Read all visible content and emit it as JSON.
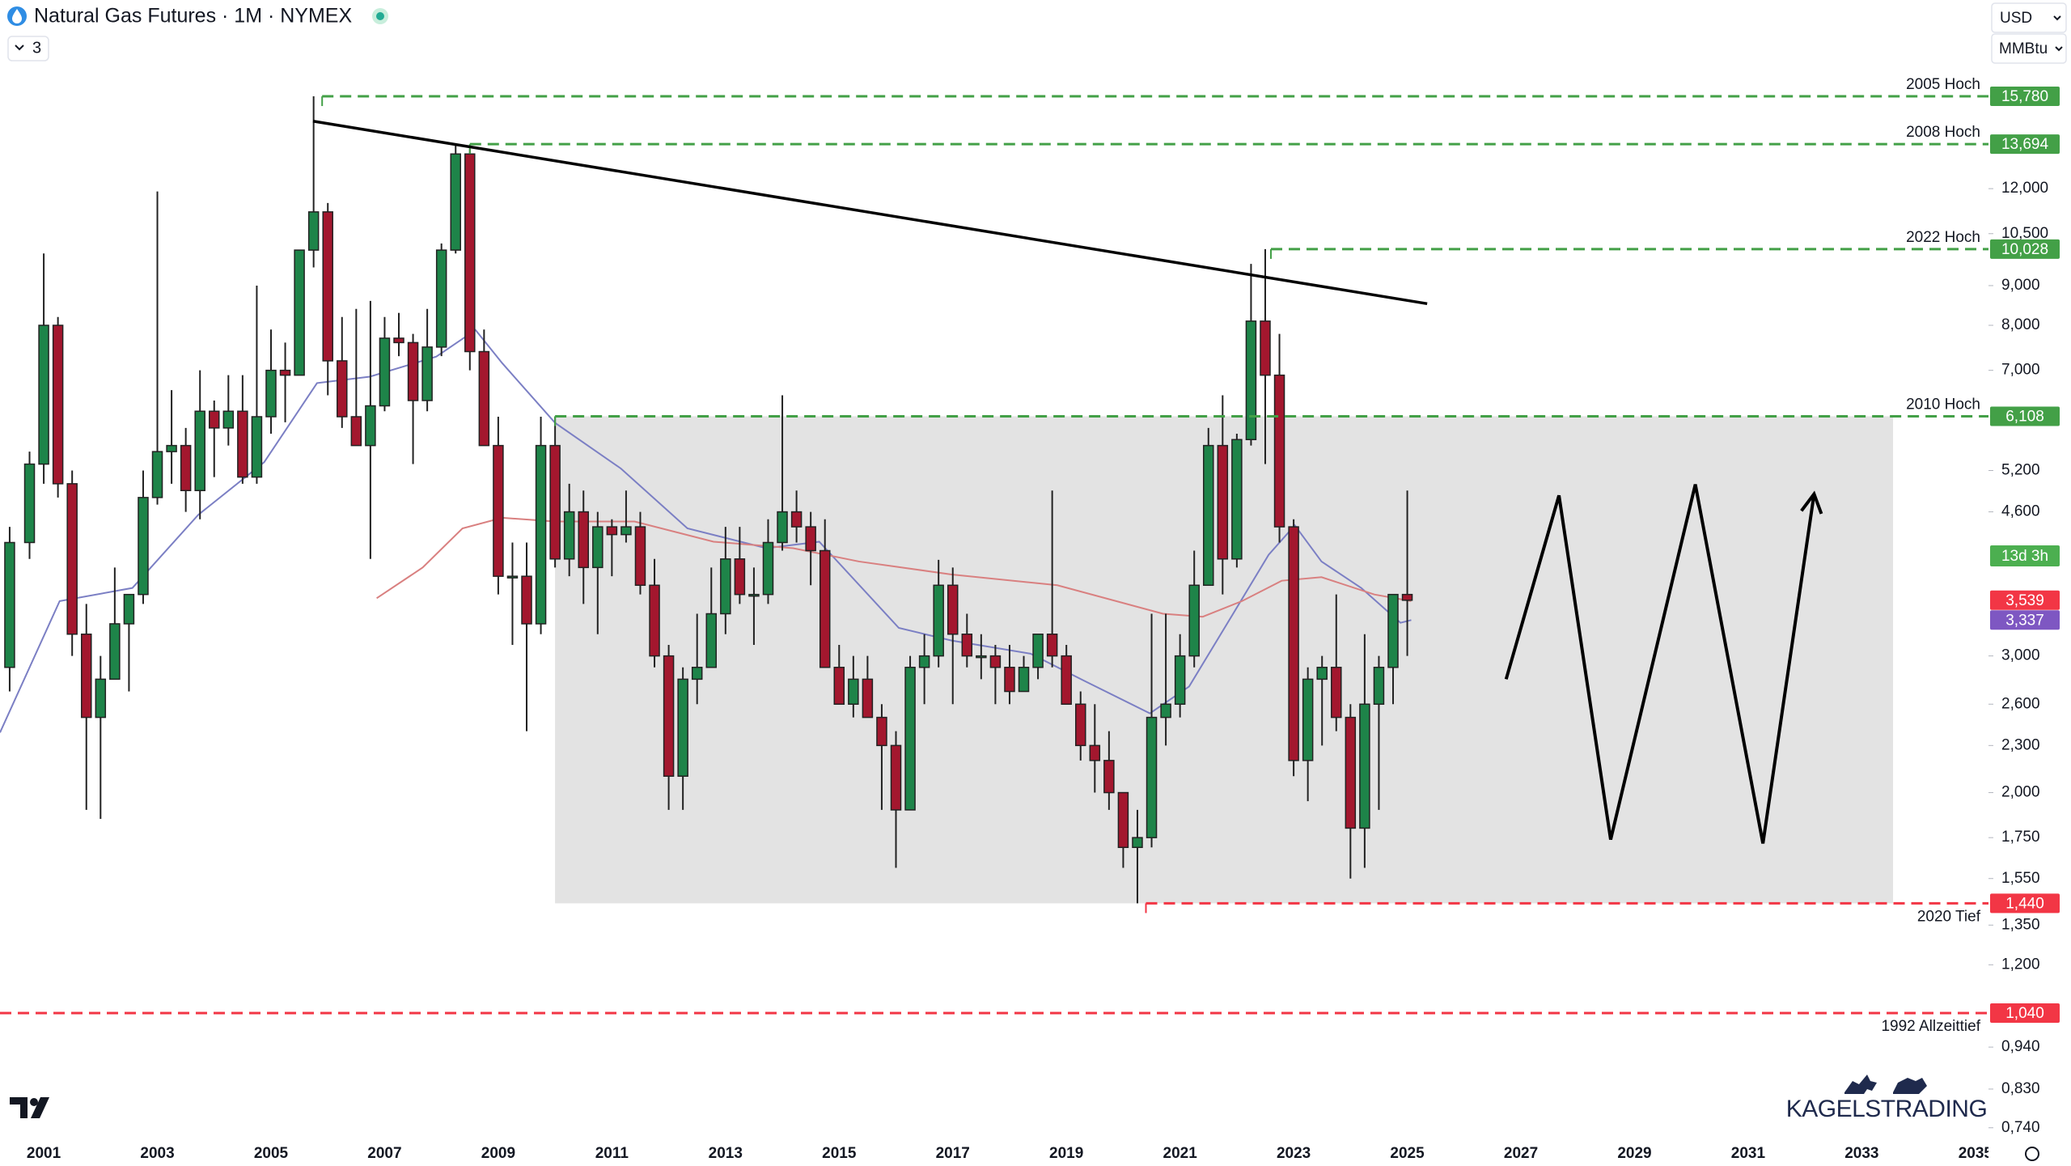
{
  "chart_data": {
    "type": "candlestick",
    "title": "Natural Gas Futures · 1M · NYMEX",
    "indicator_count": "3",
    "currency": "USD",
    "unit": "MMBtu",
    "watermark": "KAGELSTRADING",
    "countdown": "13d 3h",
    "log_scale": true,
    "xlim": [
      2000.23,
      2035.23
    ],
    "xticks": [
      2001,
      2003,
      2005,
      2007,
      2009,
      2011,
      2013,
      2015,
      2017,
      2019,
      2021,
      2023,
      2025,
      2027,
      2029,
      2031,
      2033,
      2035
    ],
    "ylim": [
      0.722,
      21.0
    ],
    "yticks": [
      {
        "value": 12,
        "label": "12,000"
      },
      {
        "value": 10.5,
        "label": "10,500"
      },
      {
        "value": 9,
        "label": "9,000"
      },
      {
        "value": 8,
        "label": "8,000"
      },
      {
        "value": 7,
        "label": "7,000"
      },
      {
        "value": 5.2,
        "label": "5,200"
      },
      {
        "value": 4.6,
        "label": "4,600"
      },
      {
        "value": 3,
        "label": "3,000"
      },
      {
        "value": 2.6,
        "label": "2,600"
      },
      {
        "value": 2.3,
        "label": "2,300"
      },
      {
        "value": 2,
        "label": "2,000"
      },
      {
        "value": 1.75,
        "label": "1,750"
      },
      {
        "value": 1.55,
        "label": "1,550"
      },
      {
        "value": 1.35,
        "label": "1,350"
      },
      {
        "value": 1.2,
        "label": "1,200"
      },
      {
        "value": 0.94,
        "label": "0,940"
      },
      {
        "value": 0.83,
        "label": "0,830"
      },
      {
        "value": 0.74,
        "label": "0,740"
      }
    ],
    "up_color": "#1e8449",
    "down_color": "#a3172e",
    "candles": [
      {
        "x": 2000.4,
        "open": 2.9,
        "high": 4.4,
        "low": 2.7,
        "close": 4.2
      },
      {
        "x": 2000.75,
        "open": 4.2,
        "high": 5.5,
        "low": 4.0,
        "close": 5.3
      },
      {
        "x": 2001.0,
        "open": 5.3,
        "high": 9.9,
        "low": 5.0,
        "close": 8.0
      },
      {
        "x": 2001.25,
        "open": 8.0,
        "high": 8.2,
        "low": 4.8,
        "close": 5.0
      },
      {
        "x": 2001.5,
        "open": 5.0,
        "high": 5.2,
        "low": 3.0,
        "close": 3.2
      },
      {
        "x": 2001.75,
        "open": 3.2,
        "high": 3.5,
        "low": 1.9,
        "close": 2.5
      },
      {
        "x": 2002.0,
        "open": 2.5,
        "high": 3.0,
        "low": 1.85,
        "close": 2.8
      },
      {
        "x": 2002.25,
        "open": 2.8,
        "high": 3.9,
        "low": 2.8,
        "close": 3.3
      },
      {
        "x": 2002.5,
        "open": 3.3,
        "high": 3.6,
        "low": 2.7,
        "close": 3.6
      },
      {
        "x": 2002.75,
        "open": 3.6,
        "high": 5.2,
        "low": 3.5,
        "close": 4.8
      },
      {
        "x": 2003.0,
        "open": 4.8,
        "high": 11.9,
        "low": 4.7,
        "close": 5.5
      },
      {
        "x": 2003.25,
        "open": 5.5,
        "high": 6.6,
        "low": 5.0,
        "close": 5.6
      },
      {
        "x": 2003.5,
        "open": 5.6,
        "high": 5.9,
        "low": 4.6,
        "close": 4.9
      },
      {
        "x": 2003.75,
        "open": 4.9,
        "high": 7.0,
        "low": 4.5,
        "close": 6.2
      },
      {
        "x": 2004.0,
        "open": 6.2,
        "high": 6.4,
        "low": 5.1,
        "close": 5.9
      },
      {
        "x": 2004.25,
        "open": 5.9,
        "high": 6.9,
        "low": 5.6,
        "close": 6.2
      },
      {
        "x": 2004.5,
        "open": 6.2,
        "high": 6.9,
        "low": 5.0,
        "close": 5.1
      },
      {
        "x": 2004.75,
        "open": 5.1,
        "high": 9.0,
        "low": 5.0,
        "close": 6.1
      },
      {
        "x": 2005.0,
        "open": 6.1,
        "high": 7.9,
        "low": 5.8,
        "close": 7.0
      },
      {
        "x": 2005.25,
        "open": 7.0,
        "high": 7.6,
        "low": 6.0,
        "close": 6.9
      },
      {
        "x": 2005.5,
        "open": 6.9,
        "high": 10.0,
        "low": 6.9,
        "close": 10.0
      },
      {
        "x": 2005.75,
        "open": 10.0,
        "high": 15.78,
        "low": 9.5,
        "close": 11.2
      },
      {
        "x": 2006.0,
        "open": 11.2,
        "high": 11.5,
        "low": 6.5,
        "close": 7.2
      },
      {
        "x": 2006.25,
        "open": 7.2,
        "high": 8.2,
        "low": 5.9,
        "close": 6.1
      },
      {
        "x": 2006.5,
        "open": 6.1,
        "high": 8.4,
        "low": 5.6,
        "close": 5.6
      },
      {
        "x": 2006.75,
        "open": 5.6,
        "high": 8.6,
        "low": 4.0,
        "close": 6.3
      },
      {
        "x": 2007.0,
        "open": 6.3,
        "high": 8.2,
        "low": 6.2,
        "close": 7.7
      },
      {
        "x": 2007.25,
        "open": 7.7,
        "high": 8.3,
        "low": 7.3,
        "close": 7.6
      },
      {
        "x": 2007.5,
        "open": 7.6,
        "high": 7.8,
        "low": 5.3,
        "close": 6.4
      },
      {
        "x": 2007.75,
        "open": 6.4,
        "high": 8.4,
        "low": 6.2,
        "close": 7.5
      },
      {
        "x": 2008.0,
        "open": 7.5,
        "high": 10.2,
        "low": 7.3,
        "close": 10.0
      },
      {
        "x": 2008.25,
        "open": 10.0,
        "high": 13.694,
        "low": 9.9,
        "close": 13.3
      },
      {
        "x": 2008.5,
        "open": 13.3,
        "high": 13.5,
        "low": 7.0,
        "close": 7.4
      },
      {
        "x": 2008.75,
        "open": 7.4,
        "high": 7.9,
        "low": 5.6,
        "close": 5.6
      },
      {
        "x": 2009.0,
        "open": 5.6,
        "high": 6.1,
        "low": 3.6,
        "close": 3.8
      },
      {
        "x": 2009.25,
        "open": 3.8,
        "high": 4.2,
        "low": 3.1,
        "close": 3.8
      },
      {
        "x": 2009.5,
        "open": 3.8,
        "high": 4.2,
        "low": 2.4,
        "close": 3.3
      },
      {
        "x": 2009.75,
        "open": 3.3,
        "high": 6.1,
        "low": 3.2,
        "close": 5.6
      },
      {
        "x": 2010.0,
        "open": 5.6,
        "high": 6.108,
        "low": 3.9,
        "close": 4.0
      },
      {
        "x": 2010.25,
        "open": 4.0,
        "high": 5.0,
        "low": 3.8,
        "close": 4.6
      },
      {
        "x": 2010.5,
        "open": 4.6,
        "high": 4.9,
        "low": 3.5,
        "close": 3.9
      },
      {
        "x": 2010.75,
        "open": 3.9,
        "high": 4.6,
        "low": 3.2,
        "close": 4.4
      },
      {
        "x": 2011.0,
        "open": 4.4,
        "high": 4.5,
        "low": 3.8,
        "close": 4.3
      },
      {
        "x": 2011.25,
        "open": 4.3,
        "high": 4.9,
        "low": 4.2,
        "close": 4.4
      },
      {
        "x": 2011.5,
        "open": 4.4,
        "high": 4.6,
        "low": 3.6,
        "close": 3.7
      },
      {
        "x": 2011.75,
        "open": 3.7,
        "high": 4.0,
        "low": 2.9,
        "close": 3.0
      },
      {
        "x": 2012.0,
        "open": 3.0,
        "high": 3.1,
        "low": 1.9,
        "close": 2.1
      },
      {
        "x": 2012.25,
        "open": 2.1,
        "high": 2.9,
        "low": 1.9,
        "close": 2.8
      },
      {
        "x": 2012.5,
        "open": 2.8,
        "high": 3.4,
        "low": 2.6,
        "close": 2.9
      },
      {
        "x": 2012.75,
        "open": 2.9,
        "high": 3.9,
        "low": 2.9,
        "close": 3.4
      },
      {
        "x": 2013.0,
        "open": 3.4,
        "high": 4.4,
        "low": 3.2,
        "close": 4.0
      },
      {
        "x": 2013.25,
        "open": 4.0,
        "high": 4.4,
        "low": 3.5,
        "close": 3.6
      },
      {
        "x": 2013.5,
        "open": 3.6,
        "high": 3.9,
        "low": 3.1,
        "close": 3.6
      },
      {
        "x": 2013.75,
        "open": 3.6,
        "high": 4.5,
        "low": 3.5,
        "close": 4.2
      },
      {
        "x": 2014.0,
        "open": 4.2,
        "high": 6.5,
        "low": 4.1,
        "close": 4.6
      },
      {
        "x": 2014.25,
        "open": 4.6,
        "high": 4.9,
        "low": 4.2,
        "close": 4.4
      },
      {
        "x": 2014.5,
        "open": 4.4,
        "high": 4.6,
        "low": 3.7,
        "close": 4.1
      },
      {
        "x": 2014.75,
        "open": 4.1,
        "high": 4.5,
        "low": 2.9,
        "close": 2.9
      },
      {
        "x": 2015.0,
        "open": 2.9,
        "high": 3.1,
        "low": 2.6,
        "close": 2.6
      },
      {
        "x": 2015.25,
        "open": 2.6,
        "high": 3.0,
        "low": 2.5,
        "close": 2.8
      },
      {
        "x": 2015.5,
        "open": 2.8,
        "high": 3.0,
        "low": 2.5,
        "close": 2.5
      },
      {
        "x": 2015.75,
        "open": 2.5,
        "high": 2.6,
        "low": 1.9,
        "close": 2.3
      },
      {
        "x": 2016.0,
        "open": 2.3,
        "high": 2.4,
        "low": 1.6,
        "close": 1.9
      },
      {
        "x": 2016.25,
        "open": 1.9,
        "high": 3.0,
        "low": 1.9,
        "close": 2.9
      },
      {
        "x": 2016.5,
        "open": 2.9,
        "high": 3.2,
        "low": 2.6,
        "close": 3.0
      },
      {
        "x": 2016.75,
        "open": 3.0,
        "high": 3.99,
        "low": 2.9,
        "close": 3.7
      },
      {
        "x": 2017.0,
        "open": 3.7,
        "high": 3.9,
        "low": 2.6,
        "close": 3.2
      },
      {
        "x": 2017.25,
        "open": 3.2,
        "high": 3.4,
        "low": 2.9,
        "close": 3.0
      },
      {
        "x": 2017.5,
        "open": 3.0,
        "high": 3.2,
        "low": 2.8,
        "close": 3.0
      },
      {
        "x": 2017.75,
        "open": 3.0,
        "high": 3.1,
        "low": 2.6,
        "close": 2.9
      },
      {
        "x": 2018.0,
        "open": 2.9,
        "high": 3.1,
        "low": 2.6,
        "close": 2.7
      },
      {
        "x": 2018.25,
        "open": 2.7,
        "high": 3.0,
        "low": 2.7,
        "close": 2.9
      },
      {
        "x": 2018.5,
        "open": 2.9,
        "high": 3.2,
        "low": 2.8,
        "close": 3.2
      },
      {
        "x": 2018.75,
        "open": 3.2,
        "high": 4.9,
        "low": 2.9,
        "close": 3.0
      },
      {
        "x": 2019.0,
        "open": 3.0,
        "high": 3.1,
        "low": 2.6,
        "close": 2.6
      },
      {
        "x": 2019.25,
        "open": 2.6,
        "high": 2.7,
        "low": 2.2,
        "close": 2.3
      },
      {
        "x": 2019.5,
        "open": 2.3,
        "high": 2.6,
        "low": 2.0,
        "close": 2.2
      },
      {
        "x": 2019.75,
        "open": 2.2,
        "high": 2.4,
        "low": 1.9,
        "close": 2.0
      },
      {
        "x": 2020.0,
        "open": 2.0,
        "high": 2.0,
        "low": 1.6,
        "close": 1.7
      },
      {
        "x": 2020.25,
        "open": 1.7,
        "high": 1.9,
        "low": 1.44,
        "close": 1.75
      },
      {
        "x": 2020.5,
        "open": 1.75,
        "high": 3.4,
        "low": 1.7,
        "close": 2.5
      },
      {
        "x": 2020.75,
        "open": 2.5,
        "high": 3.4,
        "low": 2.3,
        "close": 2.6
      },
      {
        "x": 2021.0,
        "open": 2.6,
        "high": 3.2,
        "low": 2.5,
        "close": 3.0
      },
      {
        "x": 2021.25,
        "open": 3.0,
        "high": 4.1,
        "low": 2.9,
        "close": 3.7
      },
      {
        "x": 2021.5,
        "open": 3.7,
        "high": 5.9,
        "low": 3.7,
        "close": 5.6
      },
      {
        "x": 2021.75,
        "open": 5.6,
        "high": 6.5,
        "low": 3.6,
        "close": 4.0
      },
      {
        "x": 2022.0,
        "open": 4.0,
        "high": 5.8,
        "low": 3.9,
        "close": 5.7
      },
      {
        "x": 2022.25,
        "open": 5.7,
        "high": 9.6,
        "low": 5.6,
        "close": 8.1
      },
      {
        "x": 2022.5,
        "open": 8.1,
        "high": 10.028,
        "low": 5.3,
        "close": 6.9
      },
      {
        "x": 2022.75,
        "open": 6.9,
        "high": 7.8,
        "low": 4.2,
        "close": 4.4
      },
      {
        "x": 2023.0,
        "open": 4.4,
        "high": 4.5,
        "low": 2.1,
        "close": 2.2
      },
      {
        "x": 2023.25,
        "open": 2.2,
        "high": 2.9,
        "low": 1.95,
        "close": 2.8
      },
      {
        "x": 2023.5,
        "open": 2.8,
        "high": 3.0,
        "low": 2.3,
        "close": 2.9
      },
      {
        "x": 2023.75,
        "open": 2.9,
        "high": 3.6,
        "low": 2.4,
        "close": 2.5
      },
      {
        "x": 2024.0,
        "open": 2.5,
        "high": 2.6,
        "low": 1.55,
        "close": 1.8
      },
      {
        "x": 2024.25,
        "open": 1.8,
        "high": 3.2,
        "low": 1.6,
        "close": 2.6
      },
      {
        "x": 2024.5,
        "open": 2.6,
        "high": 3.0,
        "low": 1.9,
        "close": 2.9
      },
      {
        "x": 2024.75,
        "open": 2.9,
        "high": 3.6,
        "low": 2.6,
        "close": 3.6
      },
      {
        "x": 2025.0,
        "open": 3.6,
        "high": 4.9,
        "low": 3.0,
        "close": 3.539
      }
    ],
    "series": [
      {
        "color": "#7b7fc4",
        "x": [
          2000.23,
          2001.28,
          2002.56,
          2003.72,
          2004.88,
          2005.81,
          2006.74,
          2007.91,
          2008.6,
          2009.07,
          2010.0,
          2011.16,
          2012.33,
          2013.72,
          2014.65,
          2016.05,
          2016.98,
          2018.37,
          2019.3,
          2020.47,
          2021.16,
          2021.86,
          2022.56,
          2023.02,
          2023.49,
          2024.19,
          2024.88,
          2025.07
        ],
        "values": [
          2.39,
          3.53,
          3.67,
          4.56,
          5.33,
          6.74,
          6.87,
          7.29,
          7.89,
          7.15,
          5.99,
          5.23,
          4.38,
          4.13,
          4.21,
          3.26,
          3.14,
          3.02,
          2.79,
          2.53,
          2.74,
          3.33,
          4.05,
          4.42,
          3.97,
          3.67,
          3.31,
          3.337
        ]
      },
      {
        "color": "#d98080",
        "x": [
          2006.86,
          2007.67,
          2008.37,
          2009.07,
          2010.0,
          2011.4,
          2012.79,
          2014.19,
          2015.35,
          2016.98,
          2018.84,
          2020.7,
          2021.4,
          2022.09,
          2022.79,
          2023.49,
          2024.42,
          2025.07
        ],
        "values": [
          3.56,
          3.9,
          4.38,
          4.52,
          4.47,
          4.47,
          4.21,
          4.13,
          3.97,
          3.82,
          3.7,
          3.4,
          3.37,
          3.53,
          3.75,
          3.79,
          3.6,
          3.53
        ]
      }
    ],
    "levels": [
      {
        "name": "2005 Hoch",
        "value": 15.78,
        "label": "15,780",
        "color": "#43a047",
        "from": 2005.9,
        "side": "above"
      },
      {
        "name": "2008 Hoch",
        "value": 13.694,
        "label": "13,694",
        "color": "#43a047",
        "from": 2008.5,
        "side": "above"
      },
      {
        "name": "2022 Hoch",
        "value": 10.028,
        "label": "10,028",
        "color": "#43a047",
        "from": 2022.6,
        "side": "above"
      },
      {
        "name": "2010 Hoch",
        "value": 6.108,
        "label": "6,108",
        "color": "#43a047",
        "from": 2010.0,
        "side": "above"
      },
      {
        "name": "2020 Tief",
        "value": 1.44,
        "label": "1,440",
        "color": "#f23645",
        "from": 2020.4,
        "side": "below"
      },
      {
        "name": "1992 Allzeittief",
        "value": 1.04,
        "label": "1,040",
        "color": "#f23645",
        "side": "below"
      }
    ],
    "price_labels": [
      {
        "value": 3.539,
        "label": "3,539",
        "color": "#f23645"
      },
      {
        "value": 3.337,
        "label": "3,337",
        "color": "#7e57c2"
      }
    ],
    "range_box": {
      "x": [
        2010.0,
        2033.55
      ],
      "y": [
        1.44,
        6.108
      ],
      "color": "#e3e3e3"
    },
    "trendline": {
      "x": [
        2005.74,
        2025.35
      ],
      "y": [
        14.66,
        8.53
      ],
      "color": "#000000"
    },
    "projection": {
      "x": [
        2026.74,
        2027.67,
        2028.58,
        2030.07,
        2031.26,
        2032.16
      ],
      "y": [
        2.8,
        4.83,
        1.74,
        4.99,
        1.72,
        4.85
      ],
      "color": "#000000"
    }
  }
}
